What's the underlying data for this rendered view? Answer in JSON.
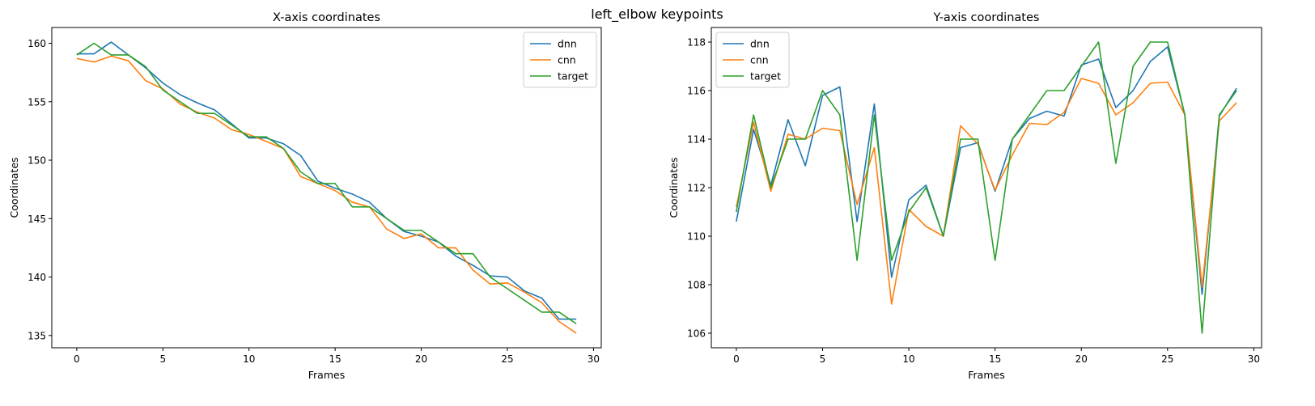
{
  "figure": {
    "suptitle": "left_elbow keypoints"
  },
  "chart_data": [
    {
      "type": "line",
      "title": "X-axis coordinates",
      "xlabel": "Frames",
      "ylabel": "Coordinates",
      "xlim": [
        -1.45,
        30.45
      ],
      "ylim": [
        133.95,
        161.35
      ],
      "xticks": [
        0,
        5,
        10,
        15,
        20,
        25,
        30
      ],
      "yticks": [
        135,
        140,
        145,
        150,
        155,
        160
      ],
      "grid": false,
      "legend_loc": "upper right",
      "x": [
        0,
        1,
        2,
        3,
        4,
        5,
        6,
        7,
        8,
        9,
        10,
        11,
        12,
        13,
        14,
        15,
        16,
        17,
        18,
        19,
        20,
        21,
        22,
        23,
        24,
        25,
        26,
        27,
        28,
        29
      ],
      "series": [
        {
          "name": "dnn",
          "color": "#1f77b4",
          "values": [
            159.1,
            159.1,
            160.1,
            159.0,
            157.9,
            156.6,
            155.6,
            154.9,
            154.3,
            153.1,
            151.9,
            151.9,
            151.4,
            150.4,
            148.2,
            147.6,
            147.1,
            146.4,
            145.0,
            143.9,
            143.5,
            143.0,
            141.8,
            141.0,
            140.1,
            140.0,
            138.8,
            138.2,
            136.4,
            136.4
          ]
        },
        {
          "name": "cnn",
          "color": "#ff7f0e",
          "values": [
            158.7,
            158.4,
            158.9,
            158.5,
            156.8,
            156.1,
            154.8,
            154.1,
            153.6,
            152.6,
            152.2,
            151.6,
            151.0,
            148.6,
            148.0,
            147.4,
            146.4,
            146.0,
            144.1,
            143.3,
            143.7,
            142.5,
            142.5,
            140.6,
            139.4,
            139.5,
            138.7,
            137.8,
            136.2,
            135.2
          ]
        },
        {
          "name": "target",
          "color": "#2ca02c",
          "values": [
            159.0,
            160.0,
            159.0,
            159.0,
            158.0,
            156.0,
            155.0,
            154.0,
            154.0,
            153.0,
            152.0,
            152.0,
            151.0,
            149.0,
            148.0,
            148.0,
            146.0,
            146.0,
            145.0,
            144.0,
            144.0,
            143.0,
            142.0,
            142.0,
            140.0,
            139.0,
            138.0,
            137.0,
            137.0,
            136.0
          ]
        }
      ]
    },
    {
      "type": "line",
      "title": "Y-axis coordinates",
      "xlabel": "Frames",
      "ylabel": "Coordinates",
      "xlim": [
        -1.45,
        30.45
      ],
      "ylim": [
        105.4,
        118.6
      ],
      "xticks": [
        0,
        5,
        10,
        15,
        20,
        25,
        30
      ],
      "yticks": [
        106,
        108,
        110,
        112,
        114,
        116,
        118
      ],
      "grid": false,
      "legend_loc": "upper left",
      "x": [
        0,
        1,
        2,
        3,
        4,
        5,
        6,
        7,
        8,
        9,
        10,
        11,
        12,
        13,
        14,
        15,
        16,
        17,
        18,
        19,
        20,
        21,
        22,
        23,
        24,
        25,
        26,
        27,
        28,
        29
      ],
      "series": [
        {
          "name": "dnn",
          "color": "#1f77b4",
          "values": [
            110.6,
            114.4,
            112.1,
            114.8,
            112.9,
            115.8,
            116.15,
            110.6,
            115.45,
            108.3,
            111.5,
            112.1,
            110.0,
            113.65,
            113.85,
            111.85,
            114.0,
            114.85,
            115.15,
            114.95,
            117.05,
            117.3,
            115.3,
            116.0,
            117.2,
            117.8,
            115.0,
            107.6,
            114.95,
            116.1
          ]
        },
        {
          "name": "cnn",
          "color": "#ff7f0e",
          "values": [
            111.2,
            114.7,
            111.85,
            114.2,
            114.0,
            114.45,
            114.35,
            111.3,
            113.65,
            107.2,
            111.1,
            110.4,
            110.0,
            114.55,
            113.8,
            111.9,
            113.35,
            114.65,
            114.6,
            115.1,
            116.5,
            116.3,
            115.0,
            115.5,
            116.3,
            116.35,
            115.0,
            107.9,
            114.75,
            115.5
          ]
        },
        {
          "name": "target",
          "color": "#2ca02c",
          "values": [
            111.0,
            115.0,
            112.0,
            114.0,
            114.0,
            116.0,
            115.0,
            109.0,
            115.0,
            109.0,
            111.0,
            112.0,
            110.0,
            114.0,
            114.0,
            109.0,
            114.0,
            115.0,
            116.0,
            116.0,
            117.0,
            118.0,
            113.0,
            117.0,
            118.0,
            118.0,
            115.0,
            106.0,
            115.0,
            116.0
          ]
        }
      ]
    }
  ]
}
